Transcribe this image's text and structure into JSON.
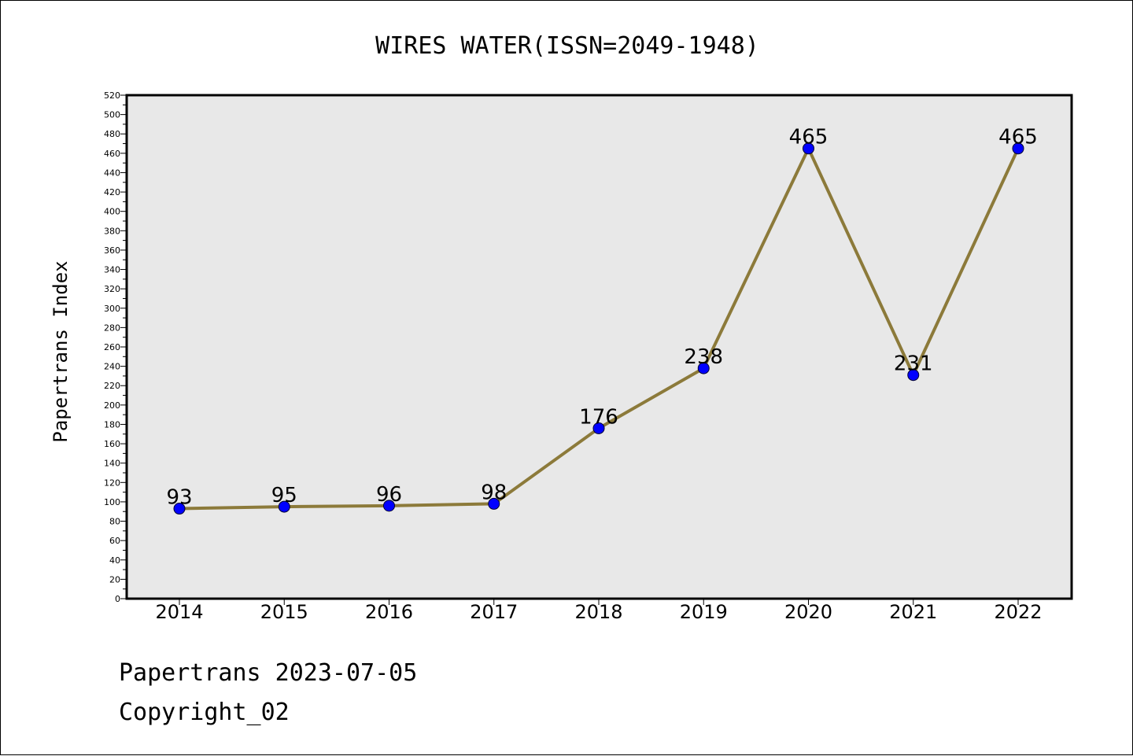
{
  "chart_data": {
    "type": "line",
    "title": "WIRES WATER(ISSN=2049-1948)",
    "ylabel": "Papertrans Index",
    "xlabel": "",
    "categories": [
      "2014",
      "2015",
      "2016",
      "2017",
      "2018",
      "2019",
      "2020",
      "2021",
      "2022"
    ],
    "values": [
      93,
      95,
      96,
      98,
      176,
      238,
      465,
      231,
      465
    ],
    "ylim": [
      0,
      520
    ],
    "ytick_step": 20,
    "grid": false,
    "legend": "none",
    "line_color": "#8c7a3a",
    "marker_color": "#0000ff",
    "plot_background": "#e8e8e8"
  },
  "footer": {
    "line1": "Papertrans 2023-07-05",
    "line2": "Copyright_02"
  }
}
